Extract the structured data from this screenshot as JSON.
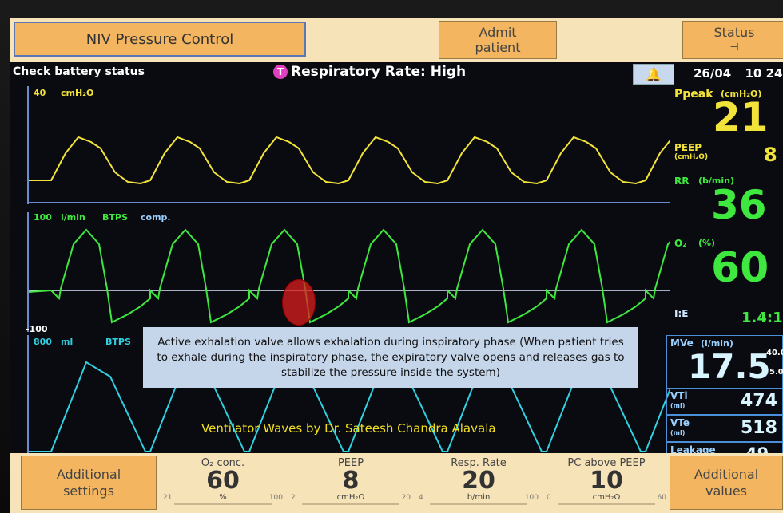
{
  "top_bar": {
    "mode_label": "NIV Pressure Control",
    "admit_line1": "Admit",
    "admit_line2": "patient",
    "status_label": "Status",
    "status_icon": "plug-icon"
  },
  "alarm_row": {
    "battery_msg": "Check battery status",
    "alarm_msg": "Respiratory Rate: High",
    "alarm_icon_letter": "T",
    "bell_icon": "alarm-bell-icon",
    "date": "26/04",
    "time": "10 24"
  },
  "waveforms": {
    "pressure": {
      "scale": "40",
      "unit": "cmH₂O",
      "color": "#f2e33a"
    },
    "flow": {
      "scale_top": "100",
      "unit": "l/min",
      "mode1": "BTPS",
      "mode2": "comp.",
      "scale_bottom": "-100",
      "color": "#3fe83f"
    },
    "volume": {
      "scale": "800",
      "unit": "ml",
      "mode": "BTPS",
      "color": "#2fd0e0"
    }
  },
  "readouts": {
    "ppeak": {
      "label": "Ppeak",
      "unit": "(cmH₂O)",
      "value": "21"
    },
    "peep": {
      "label": "PEEP",
      "unit": "(cmH₂O)",
      "value": "8"
    },
    "rr": {
      "label": "RR",
      "unit": "(b/min)",
      "value": "36"
    },
    "o2": {
      "label": "O₂",
      "unit": "(%)",
      "value": "60"
    },
    "ie": {
      "label": "I:E",
      "value": "1.4:1"
    },
    "mve": {
      "label": "MVe",
      "unit": "(l/min)",
      "value": "17.5",
      "hi": "40.0",
      "lo": "5.0"
    },
    "vti": {
      "label": "VTi",
      "unit": "(ml)",
      "value": "474"
    },
    "vte": {
      "label": "VTe",
      "unit": "(ml)",
      "value": "518"
    },
    "leakage": {
      "label": "Leakage",
      "unit": "(%)",
      "value": "49"
    }
  },
  "bottom_bar": {
    "additional_settings_1": "Additional",
    "additional_settings_2": "settings",
    "additional_values_1": "Additional",
    "additional_values_2": "values",
    "params": [
      {
        "label": "O₂ conc.",
        "value": "60",
        "unit": "%",
        "min": "21",
        "max": "100"
      },
      {
        "label": "PEEP",
        "value": "8",
        "unit": "cmH₂O",
        "min": "2",
        "max": "20"
      },
      {
        "label": "Resp. Rate",
        "value": "20",
        "unit": "b/min",
        "min": "4",
        "max": "100"
      },
      {
        "label": "PC above PEEP",
        "value": "10",
        "unit": "cmH₂O",
        "min": "0",
        "max": "60"
      }
    ]
  },
  "annotation": {
    "text": "Active exhalation valve allows exhalation during inspiratory phase (When patient tries to exhale during the inspiratory phase, the expiratory valve opens and releases gas to stabilize the pressure inside the system)",
    "credit": "Ventilator Waves by Dr. Sateesh Chandra Alavala"
  }
}
